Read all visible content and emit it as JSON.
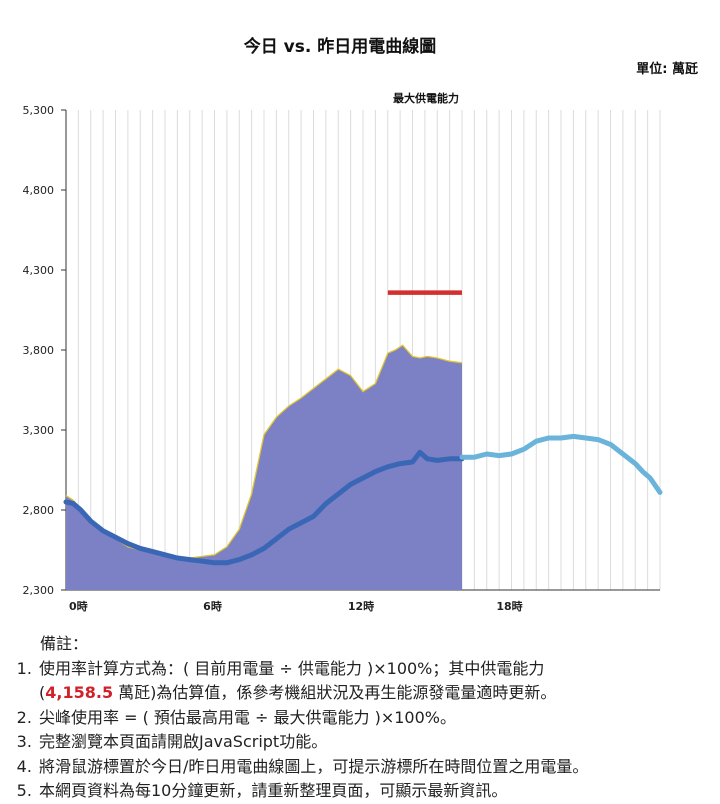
{
  "chart_data": {
    "type": "area",
    "title": "今日 vs. 昨日用電曲線圖",
    "unit": "單位: 萬瓩",
    "ylim": [
      2300,
      5300
    ],
    "yticks": [
      "5,300",
      "4,800",
      "4,300",
      "3,800",
      "3,300",
      "2,800",
      "2,300"
    ],
    "ytick_values": [
      5300,
      4800,
      4300,
      3800,
      3300,
      2800,
      2300
    ],
    "xlim": [
      0,
      24
    ],
    "xticks": [
      "0時",
      "6時",
      "12時",
      "18時"
    ],
    "xtick_values": [
      0,
      6,
      12,
      18
    ],
    "grid": "vertical",
    "series": [
      {
        "type": "area",
        "color": "#7c80c4",
        "x": [
          0,
          0.3,
          0.6,
          1,
          1.5,
          2,
          2.5,
          3,
          3.5,
          4,
          4.5,
          5,
          5.5,
          6,
          6.5,
          7,
          7.5,
          8,
          8.5,
          9,
          9.5,
          10,
          10.5,
          11,
          11.5,
          12,
          12.5,
          13,
          13.3,
          13.6,
          14,
          14.3,
          14.6,
          15,
          15.5,
          16
        ],
        "values": [
          2890,
          2860,
          2800,
          2730,
          2660,
          2620,
          2570,
          2550,
          2530,
          2520,
          2510,
          2500,
          2510,
          2520,
          2570,
          2680,
          2900,
          3270,
          3380,
          3450,
          3500,
          3560,
          3620,
          3680,
          3640,
          3540,
          3590,
          3780,
          3800,
          3830,
          3760,
          3750,
          3760,
          3750,
          3730,
          3720
        ]
      },
      {
        "type": "line",
        "color": "#3a67b5",
        "x": [
          0,
          0.3,
          0.6,
          1,
          1.5,
          2,
          2.5,
          3,
          3.5,
          4,
          4.5,
          5,
          5.5,
          6,
          6.5,
          7,
          7.5,
          8,
          8.5,
          9,
          9.5,
          10,
          10.5,
          11,
          11.5,
          12,
          12.5,
          13,
          13.5,
          14,
          14.3,
          14.6,
          15,
          15.5,
          16
        ],
        "values": [
          2850,
          2840,
          2800,
          2730,
          2670,
          2630,
          2590,
          2560,
          2540,
          2520,
          2500,
          2490,
          2480,
          2470,
          2470,
          2490,
          2520,
          2560,
          2620,
          2680,
          2720,
          2760,
          2840,
          2900,
          2960,
          3000,
          3040,
          3070,
          3090,
          3100,
          3160,
          3120,
          3110,
          3120,
          3120
        ]
      },
      {
        "type": "line",
        "color": "#6ab4dc",
        "x": [
          16,
          16.5,
          17,
          17.5,
          18,
          18.5,
          19,
          19.5,
          20,
          20.5,
          21,
          21.5,
          22,
          22.5,
          23,
          23.3,
          23.6,
          24
        ],
        "values": [
          3130,
          3130,
          3150,
          3140,
          3150,
          3180,
          3230,
          3250,
          3250,
          3260,
          3250,
          3240,
          3210,
          3150,
          3090,
          3040,
          3000,
          2910
        ]
      },
      {
        "type": "line",
        "name": "最大供電能力",
        "color": "#d32f2f",
        "x": [
          13,
          16
        ],
        "values": [
          4158.5,
          4158.5
        ]
      }
    ]
  },
  "notes": {
    "title": "備註：",
    "item1_line1": "使用率計算方式為：( 目前用電量 ÷ 供電能力 )×100%；其中供電能力",
    "item1_open": "(",
    "item1_value": "4,158.5",
    "item1_rest": " 萬瓩)為估算值，係參考機組狀況及再生能源發電量適時更新。",
    "item2": "尖峰使用率 = ( 預估最高用電 ÷ 最大供電能力 )×100%。",
    "item3": "完整瀏覽本頁面請開啟JavaScript功能。",
    "item4": "將滑鼠游標置於今日/昨日用電曲線圖上，可提示游標所在時間位置之用電量。",
    "item5": "本網頁資料為每10分鐘更新，請重新整理頁面，可顯示最新資訊。"
  }
}
